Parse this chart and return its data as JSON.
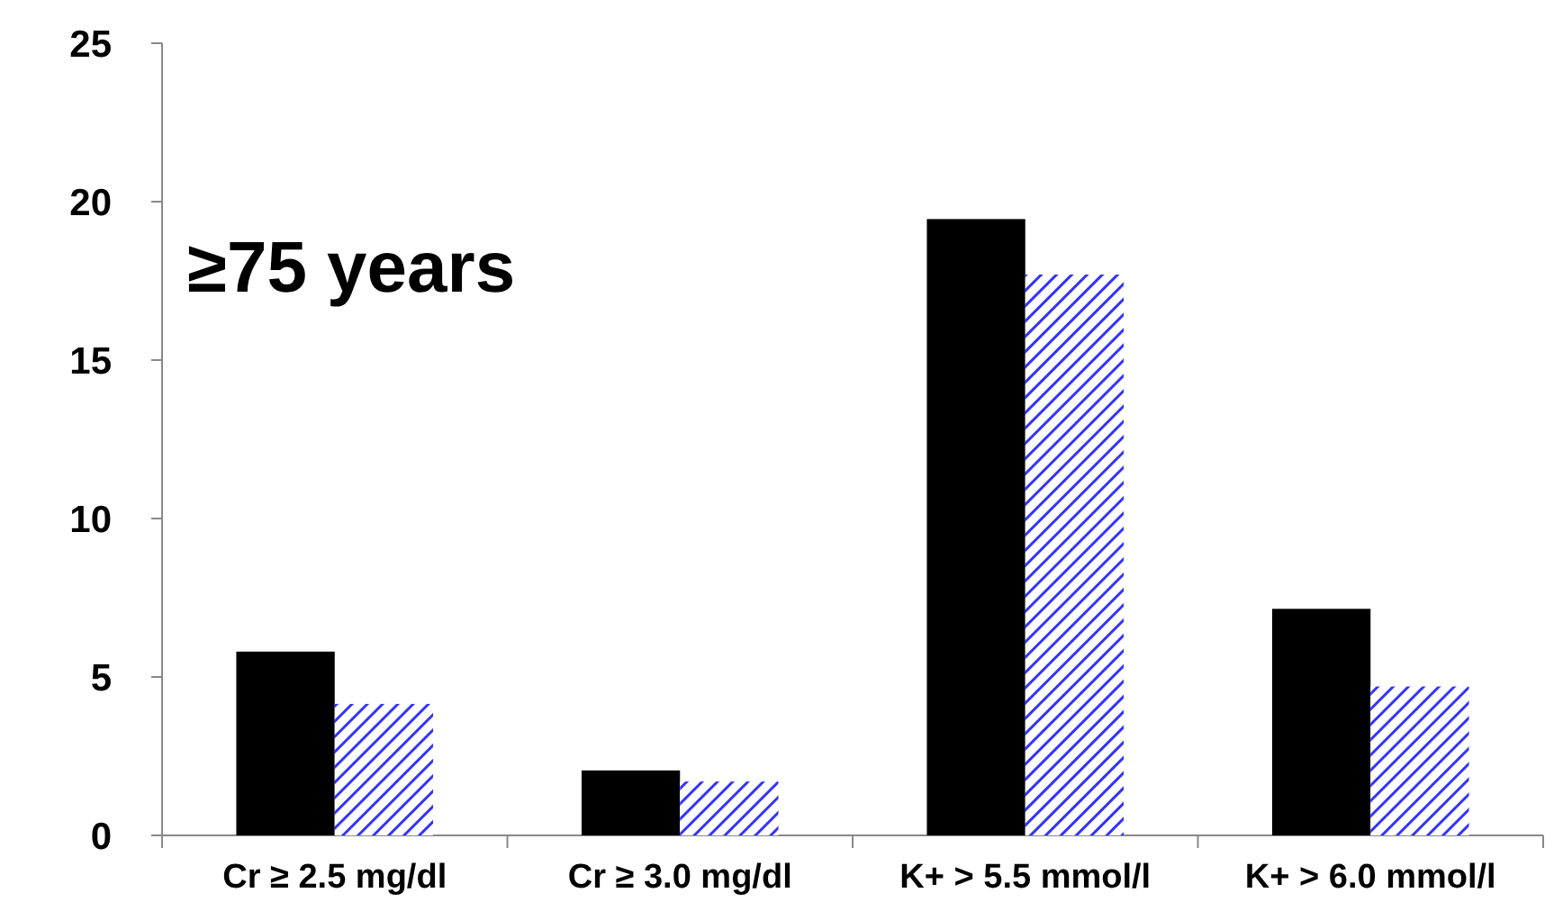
{
  "chart_data": {
    "type": "bar",
    "categories": [
      "Cr ≥ 2.5 mg/dl",
      "Cr ≥ 3.0 mg/dl",
      "K+ > 5.5 mmol/l",
      "K+ > 6.0 mmol/l"
    ],
    "series": [
      {
        "color": "#000000",
        "values": [
          5.8,
          2.05,
          19.45,
          7.15
        ]
      },
      {
        "color": "#3333ff",
        "values": [
          4.15,
          1.7,
          17.7,
          4.7
        ]
      }
    ],
    "ylim": [
      0,
      25
    ],
    "yticks": [
      0,
      5,
      10,
      15,
      20,
      25
    ],
    "annotations": [
      "≥75 years"
    ]
  }
}
